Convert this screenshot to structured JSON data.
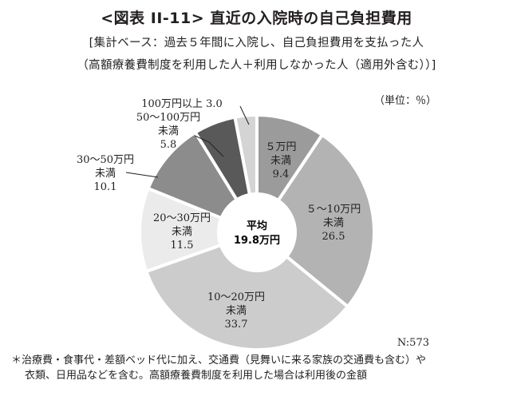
{
  "title": "<図表 II-11> 直近の入院時の自己負担費用",
  "subtitle_line1": "[集計ベース：過去５年間に入院し、自己負担費用を支払った人",
  "subtitle_line2": "（高額療養費制度を利用した人＋利用しなかった人（適用外含む））]",
  "unit_label": "（単位：％）",
  "sample_size_label": "N:573",
  "footnote_line1": "＊治療費・食事代・差額ベッド代に加え、交通費（見舞いに来る家族の交通費も含む）や",
  "footnote_line2": "衣類、日用品などを含む。高額療養費制度を利用した場合は利用後の金額",
  "center_label": {
    "line1": "平均",
    "line2": "19.8万円"
  },
  "chart_data": {
    "type": "pie",
    "style": "donut",
    "slices": [
      {
        "label_lines": [
          "５万円",
          "未満"
        ],
        "value": 9.4,
        "color": "#9b9b9b"
      },
      {
        "label_lines": [
          "５～10万円",
          "未満"
        ],
        "value": 26.5,
        "color": "#b3b3b3"
      },
      {
        "label_lines": [
          "10～20万円",
          "未満"
        ],
        "value": 33.7,
        "color": "#cccccc"
      },
      {
        "label_lines": [
          "20～30万円",
          "未満"
        ],
        "value": 11.5,
        "color": "#ebebeb"
      },
      {
        "label_lines": [
          "30～50万円",
          "未満"
        ],
        "value": 10.1,
        "color": "#8c8c8c"
      },
      {
        "label_lines": [
          "50～100万円",
          "未満"
        ],
        "value": 5.8,
        "color": "#595959"
      },
      {
        "label_lines": [
          "100万円以上"
        ],
        "value": 3.0,
        "color": "#d4d4d4"
      }
    ]
  }
}
